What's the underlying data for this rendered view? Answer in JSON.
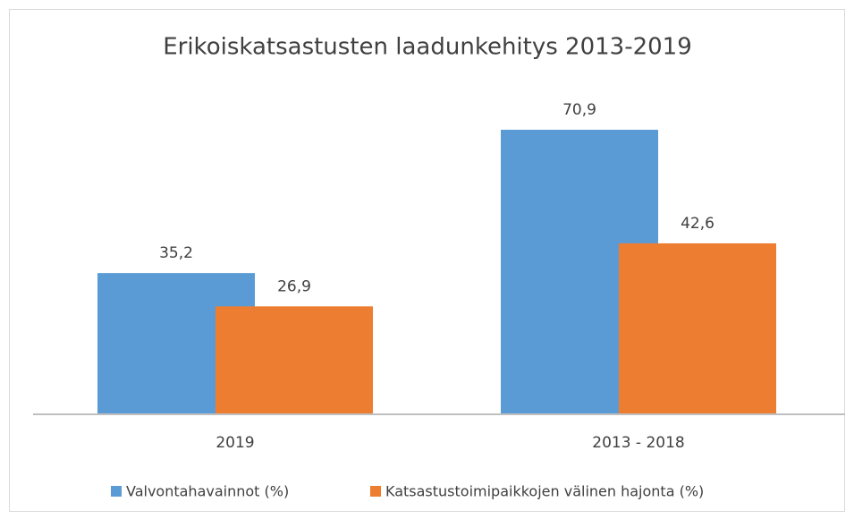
{
  "chart_data": {
    "type": "bar",
    "title": "Erikoiskatsastusten laadunkehitys 2013-2019",
    "categories": [
      "2019",
      "2013 - 2018"
    ],
    "series": [
      {
        "name": "Valvontahavainnot (%)",
        "color": "#5b9bd5",
        "values": [
          35.2,
          70.9
        ],
        "value_labels": [
          "35,2",
          "70,9"
        ]
      },
      {
        "name": "Katsastustoimipaikkojen välinen hajonta (%)",
        "color": "#ed7d31",
        "values": [
          26.9,
          42.6
        ],
        "value_labels": [
          "26,9",
          "42,6"
        ]
      }
    ],
    "legend": "bottom"
  }
}
